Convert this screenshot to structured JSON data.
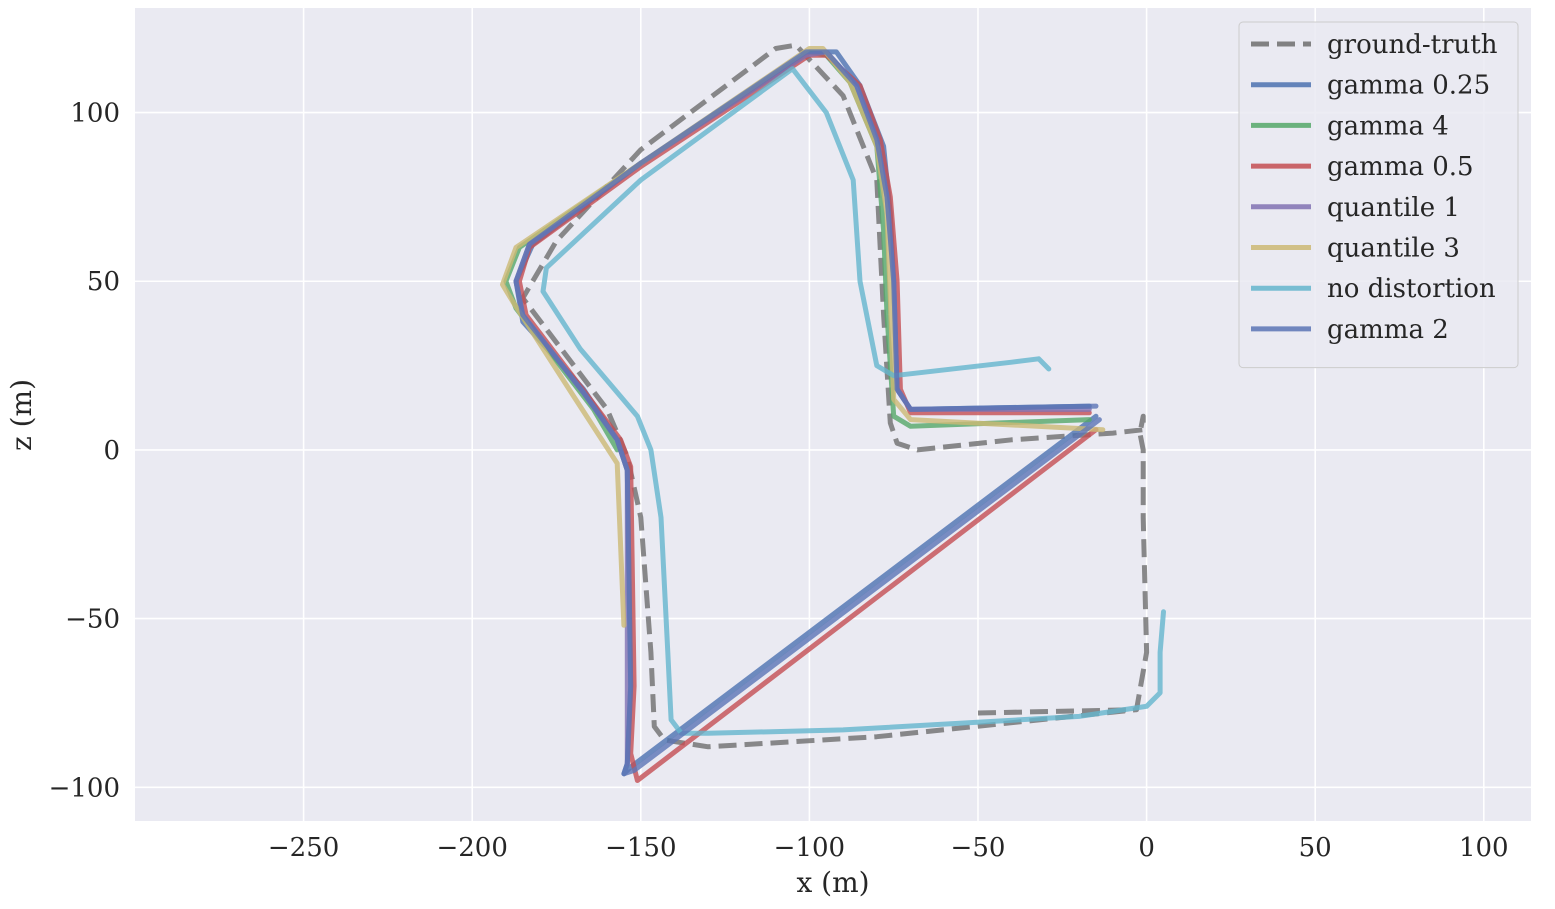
{
  "chart_data": {
    "type": "line",
    "xlabel": "x (m)",
    "ylabel": "z (m)",
    "xlim": [
      -300,
      114
    ],
    "ylim": [
      -110,
      131
    ],
    "xticks": [
      -250,
      -200,
      -150,
      -100,
      -50,
      0,
      50,
      100
    ],
    "yticks": [
      -100,
      -50,
      0,
      50,
      100
    ],
    "xtick_labels": [
      "−250",
      "−200",
      "−150",
      "−100",
      "−50",
      "0",
      "50",
      "100"
    ],
    "ytick_labels": [
      "−100",
      "−50",
      "0",
      "50",
      "100"
    ],
    "grid": true,
    "legend_position": "upper-right",
    "background": "#eaeaf2",
    "series": [
      {
        "name": "ground-truth",
        "color": "#6e6e6e",
        "style": "dashed",
        "points": [
          [
            -50,
            -78
          ],
          [
            -3,
            -77
          ],
          [
            0,
            -60
          ],
          [
            -1,
            -20
          ],
          [
            -1,
            0
          ],
          [
            -2,
            5
          ],
          [
            -1,
            10
          ],
          [
            -1,
            6
          ],
          [
            -10,
            5
          ],
          [
            -40,
            3
          ],
          [
            -68,
            0
          ],
          [
            -74,
            2
          ],
          [
            -76,
            8
          ],
          [
            -78,
            40
          ],
          [
            -80,
            80
          ],
          [
            -90,
            105
          ],
          [
            -104,
            120
          ],
          [
            -110,
            119
          ],
          [
            -150,
            89
          ],
          [
            -175,
            62
          ],
          [
            -185,
            45
          ],
          [
            -160,
            12
          ],
          [
            -154,
            -2
          ],
          [
            -150,
            -20
          ],
          [
            -147,
            -60
          ],
          [
            -146,
            -82
          ],
          [
            -143,
            -86
          ],
          [
            -130,
            -88
          ],
          [
            -80,
            -85
          ],
          [
            -3,
            -77
          ]
        ]
      },
      {
        "name": "gamma 0.25",
        "color": "#4c72b0",
        "style": "solid",
        "points": [
          [
            -17,
            13
          ],
          [
            -70,
            12
          ],
          [
            -74,
            18
          ],
          [
            -75,
            50
          ],
          [
            -76,
            70
          ],
          [
            -78,
            90
          ],
          [
            -85,
            108
          ],
          [
            -92,
            118
          ],
          [
            -100,
            118
          ],
          [
            -150,
            85
          ],
          [
            -182,
            61
          ],
          [
            -187,
            50
          ],
          [
            -185,
            38
          ],
          [
            -167,
            18
          ],
          [
            -157,
            3
          ],
          [
            -154,
            -6
          ],
          [
            -153,
            -70
          ],
          [
            -154,
            -93
          ],
          [
            -155,
            -96
          ],
          [
            -153,
            -94
          ],
          [
            -15,
            10
          ]
        ]
      },
      {
        "name": "gamma 4",
        "color": "#55a868",
        "style": "solid",
        "points": [
          [
            -17,
            9
          ],
          [
            -70,
            7
          ],
          [
            -75,
            10
          ],
          [
            -77,
            40
          ],
          [
            -78,
            65
          ],
          [
            -80,
            90
          ],
          [
            -88,
            109
          ],
          [
            -95,
            117
          ],
          [
            -100,
            118
          ],
          [
            -150,
            85
          ],
          [
            -186,
            60
          ],
          [
            -190,
            50
          ],
          [
            -187,
            42
          ],
          [
            -164,
            12
          ],
          [
            -157,
            0
          ]
        ]
      },
      {
        "name": "gamma 0.5",
        "color": "#c44e52",
        "style": "solid",
        "points": [
          [
            -17,
            11
          ],
          [
            -70,
            11
          ],
          [
            -73,
            18
          ],
          [
            -74,
            50
          ],
          [
            -76,
            75
          ],
          [
            -79,
            92
          ],
          [
            -85,
            108
          ],
          [
            -95,
            117
          ],
          [
            -100,
            117
          ],
          [
            -150,
            84
          ],
          [
            -183,
            60
          ],
          [
            -186,
            50
          ],
          [
            -184,
            40
          ],
          [
            -165,
            15
          ],
          [
            -156,
            3
          ],
          [
            -153,
            -5
          ],
          [
            -152,
            -70
          ],
          [
            -153,
            -90
          ],
          [
            -151,
            -98
          ],
          [
            -15,
            6
          ]
        ]
      },
      {
        "name": "quantile 1",
        "color": "#8172b3",
        "style": "solid",
        "points": [
          [
            -17,
            12
          ],
          [
            -70,
            12
          ],
          [
            -74,
            18
          ],
          [
            -75,
            50
          ],
          [
            -77,
            75
          ],
          [
            -80,
            92
          ],
          [
            -86,
            108
          ],
          [
            -95,
            118
          ],
          [
            -101,
            117
          ],
          [
            -150,
            85
          ],
          [
            -183,
            61
          ],
          [
            -187,
            50
          ],
          [
            -185,
            40
          ],
          [
            -167,
            17
          ],
          [
            -157,
            3
          ],
          [
            -154,
            -6
          ],
          [
            -154,
            -93
          ]
        ]
      },
      {
        "name": "quantile 3",
        "color": "#ccb974",
        "style": "solid",
        "points": [
          [
            -13,
            6
          ],
          [
            -70,
            9
          ],
          [
            -75,
            15
          ],
          [
            -76,
            45
          ],
          [
            -77,
            70
          ],
          [
            -80,
            90
          ],
          [
            -88,
            109
          ],
          [
            -96,
            119
          ],
          [
            -100,
            119
          ],
          [
            -150,
            85
          ],
          [
            -187,
            60
          ],
          [
            -191,
            49
          ],
          [
            -188,
            44
          ],
          [
            -170,
            16
          ],
          [
            -157,
            -4
          ],
          [
            -155,
            -52
          ]
        ]
      },
      {
        "name": "no distortion",
        "color": "#64b5cd",
        "style": "solid",
        "points": [
          [
            -29,
            24
          ],
          [
            -32,
            27
          ],
          [
            -40,
            26
          ],
          [
            -75,
            22
          ],
          [
            -80,
            25
          ],
          [
            -85,
            50
          ],
          [
            -87,
            80
          ],
          [
            -95,
            100
          ],
          [
            -105,
            113
          ],
          [
            -150,
            80
          ],
          [
            -178,
            54
          ],
          [
            -179,
            47
          ],
          [
            -168,
            30
          ],
          [
            -151,
            10
          ],
          [
            -147,
            0
          ],
          [
            -144,
            -20
          ],
          [
            -142,
            -60
          ],
          [
            -141,
            -80
          ],
          [
            -138,
            -84
          ],
          [
            -130,
            -84
          ],
          [
            -90,
            -83
          ],
          [
            -20,
            -79
          ],
          [
            0,
            -76
          ],
          [
            4,
            -72
          ],
          [
            4,
            -60
          ],
          [
            5,
            -48
          ]
        ]
      },
      {
        "name": "gamma 2",
        "color": "#5b74b5",
        "style": "solid",
        "points": [
          [
            -15,
            13
          ],
          [
            -70,
            12
          ],
          [
            -74,
            18
          ],
          [
            -75,
            50
          ],
          [
            -77,
            75
          ],
          [
            -80,
            92
          ],
          [
            -86,
            108
          ],
          [
            -95,
            118
          ],
          [
            -101,
            118
          ],
          [
            -150,
            85
          ],
          [
            -183,
            61
          ],
          [
            -187,
            50
          ],
          [
            -185,
            40
          ],
          [
            -167,
            17
          ],
          [
            -157,
            3
          ],
          [
            -154,
            -6
          ],
          [
            -153,
            -70
          ],
          [
            -154,
            -93
          ],
          [
            -155,
            -96
          ],
          [
            -152,
            -95
          ],
          [
            -14,
            9
          ]
        ]
      }
    ]
  }
}
